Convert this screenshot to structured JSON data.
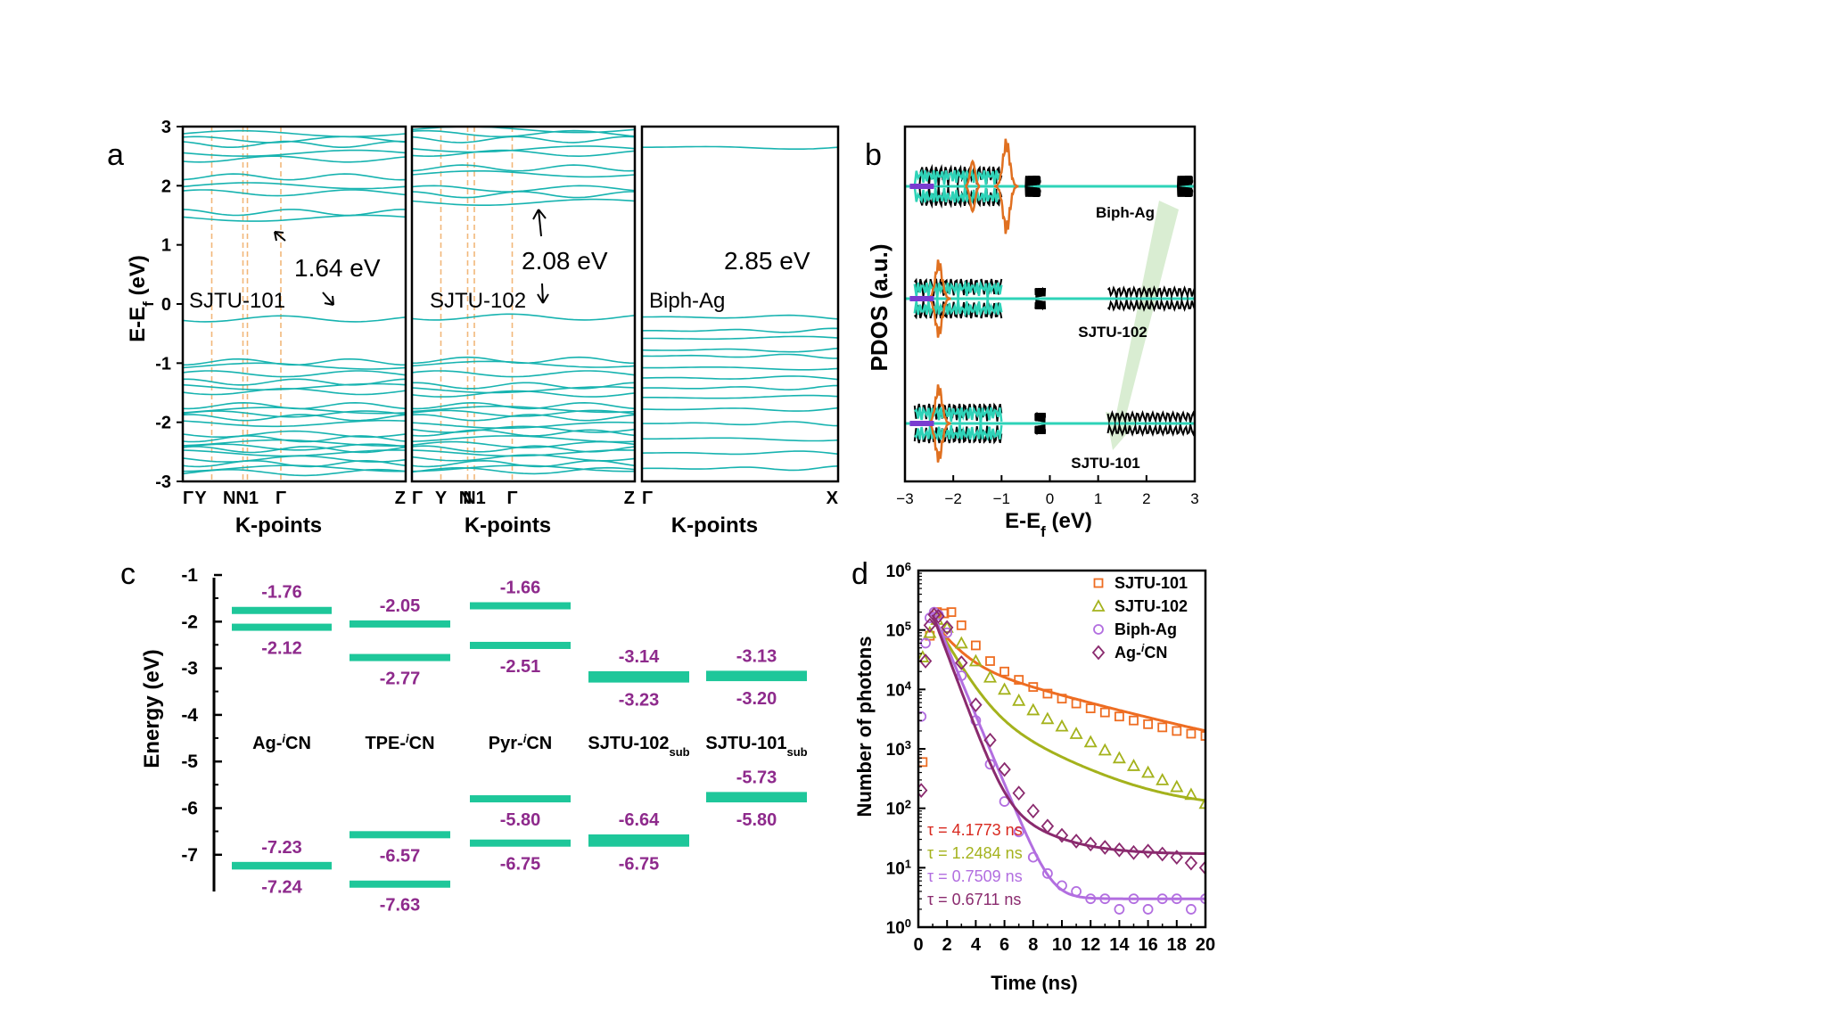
{
  "panels": {
    "a": "a",
    "b": "b",
    "c": "c",
    "d": "d"
  },
  "colors": {
    "band": "#17b3b0",
    "kline": "#f2b77a",
    "level": "#1ec79a",
    "levelLabel": "#8e2a8c",
    "pdos": {
      "total": "#000000",
      "ag": "#e07020",
      "c": "#2ed3b8",
      "n": "#7a3cd0"
    },
    "decay": {
      "sjtu101": "#ee6d22",
      "sjtu102": "#a4b21c",
      "biph": "#b26ee0",
      "agcn": "#8a2a6e"
    },
    "arrowFill": "#cfe8c7"
  },
  "panel_a": {
    "ylabel": "E-E",
    "ylabel_sub": "f",
    "ylabel_unit": " (eV)",
    "yticks": [
      "3",
      "2",
      "1",
      "0",
      "-1",
      "-2",
      "-3"
    ],
    "xlabel": "K-points",
    "subpanels": [
      {
        "name": "SJTU-101",
        "gap": "1.64 eV",
        "kpoints": [
          "Γ",
          "Y",
          "NN1",
          "Γ",
          "Z"
        ]
      },
      {
        "name": "SJTU-102",
        "gap": "2.08 eV",
        "kpoints": [
          "Γ",
          "Y",
          "N",
          "N1",
          "Γ",
          "Z"
        ]
      },
      {
        "name": "Biph-Ag",
        "gap": "2.85 eV",
        "kpoints": [
          "Γ",
          "X"
        ]
      }
    ]
  },
  "panel_b": {
    "ylabel": "PDOS (a.u.)",
    "xlabel": "E-E",
    "xlabel_sub": "f",
    "xlabel_unit": " (eV)",
    "xticks": [
      "−3",
      "−2",
      "−1",
      "0",
      "1",
      "2",
      "3"
    ],
    "traces": [
      "Biph-Ag",
      "SJTU-102",
      "SJTU-101"
    ]
  },
  "panel_c": {
    "ylabel": "Energy (eV)",
    "yticks": [
      "-1",
      "-2",
      "-3",
      "-4",
      "-5",
      "-6",
      "-7"
    ],
    "materials": [
      {
        "name": "Ag-",
        "sup": "i",
        "post": "CN",
        "sub": "",
        "up": [
          "-1.76",
          "-2.12"
        ],
        "down": [
          "-7.23",
          "-7.24"
        ]
      },
      {
        "name": "TPE-",
        "sup": "i",
        "post": "CN",
        "sub": "",
        "up": [
          "-2.05",
          "-2.77"
        ],
        "down": [
          "-6.57",
          "-7.63"
        ]
      },
      {
        "name": "Pyr-",
        "sup": "i",
        "post": "CN",
        "sub": "",
        "up": [
          "-1.66",
          "-2.51"
        ],
        "down": [
          "-5.80",
          "-6.75"
        ]
      },
      {
        "name": "SJTU-102",
        "sup": "",
        "post": "",
        "sub": "sub",
        "up": [
          "-3.14",
          "-3.23"
        ],
        "down": [
          "-6.64",
          "-6.75"
        ]
      },
      {
        "name": "SJTU-101",
        "sup": "",
        "post": "",
        "sub": "sub",
        "up": [
          "-3.13",
          "-3.20"
        ],
        "down": [
          "-5.73",
          "-5.80"
        ]
      }
    ]
  },
  "chart_data": [
    {
      "type": "line",
      "panel": "d",
      "xlabel": "Time (ns)",
      "ylabel": "Number of photons",
      "xlim": [
        0,
        20
      ],
      "ylim_log10": [
        0,
        6
      ],
      "yscale": "log",
      "xticks": [
        "0",
        "2",
        "4",
        "6",
        "8",
        "10",
        "12",
        "14",
        "16",
        "18",
        "20"
      ],
      "yticks": [
        {
          "base": "10",
          "exp": "0"
        },
        {
          "base": "10",
          "exp": "1"
        },
        {
          "base": "10",
          "exp": "2"
        },
        {
          "base": "10",
          "exp": "3"
        },
        {
          "base": "10",
          "exp": "4"
        },
        {
          "base": "10",
          "exp": "5"
        },
        {
          "base": "10",
          "exp": "6"
        }
      ],
      "legend_position": "top-right",
      "series": [
        {
          "name": "SJTU-101",
          "pre": "",
          "sup": "",
          "post": "",
          "marker": "square",
          "tau_label": "τ = 4.1773 ns",
          "x": [
            0.3,
            0.8,
            1.3,
            1.8,
            2.3,
            3,
            4,
            5,
            6,
            7,
            8,
            9,
            10,
            11,
            12,
            13,
            14,
            15,
            16,
            17,
            18,
            19,
            20
          ],
          "y": [
            600,
            80000,
            200000,
            190000,
            200000,
            120000,
            55000,
            30000,
            20000,
            14500,
            11000,
            8500,
            7000,
            5800,
            4800,
            4100,
            3500,
            3000,
            2600,
            2300,
            2000,
            1800,
            1650
          ],
          "fit_a": 0.1,
          "fit_b": 2.8,
          "fit_c": 400
        },
        {
          "name": "SJTU-102",
          "pre": "",
          "sup": "",
          "post": "",
          "marker": "triangle",
          "tau_label": "τ = 1.2484 ns",
          "x": [
            0.3,
            0.8,
            1.3,
            2,
            3,
            4,
            5,
            6,
            7,
            8,
            9,
            10,
            11,
            12,
            13,
            14,
            15,
            16,
            17,
            18,
            19,
            20
          ],
          "y": [
            35000,
            90000,
            150000,
            110000,
            60000,
            30000,
            16000,
            10000,
            6500,
            4500,
            3200,
            2400,
            1800,
            1300,
            950,
            700,
            520,
            400,
            300,
            230,
            170,
            120
          ],
          "fit_a": 0.12,
          "fit_b": 1.25,
          "fit_c": 100
        },
        {
          "name": "Biph-Ag",
          "pre": "",
          "sup": "",
          "post": "",
          "marker": "circle",
          "tau_label": "τ = 0.7509 ns",
          "x": [
            0.2,
            0.5,
            0.8,
            1.1,
            1.4,
            2,
            3,
            4,
            5,
            6,
            7,
            8,
            9,
            10,
            11,
            12,
            13,
            14,
            15,
            16,
            17,
            18,
            19,
            20
          ],
          "y": [
            3500,
            60000,
            160000,
            200000,
            180000,
            90000,
            17000,
            3000,
            550,
            130,
            40,
            15,
            8,
            5,
            4,
            3,
            3,
            2,
            3,
            2,
            3,
            3,
            2,
            3
          ],
          "fit_a": 0.15,
          "fit_b": 0.75,
          "fit_c": 3
        },
        {
          "name": "",
          "pre": "Ag-",
          "sup": "i",
          "post": "CN",
          "marker": "diamond",
          "tau_label": "τ = 0.6711 ns",
          "x": [
            0.2,
            0.5,
            0.8,
            1.1,
            1.4,
            2,
            3,
            4,
            5,
            6,
            7,
            8,
            9,
            10,
            11,
            12,
            13,
            14,
            15,
            16,
            17,
            18,
            19,
            20
          ],
          "y": [
            200,
            30000,
            120000,
            180000,
            170000,
            110000,
            28000,
            5500,
            1400,
            450,
            180,
            90,
            50,
            35,
            28,
            25,
            22,
            20,
            18,
            19,
            17,
            15,
            12,
            10
          ],
          "fit_a": 0.15,
          "fit_b": 0.67,
          "fit_c": 17
        }
      ]
    }
  ]
}
